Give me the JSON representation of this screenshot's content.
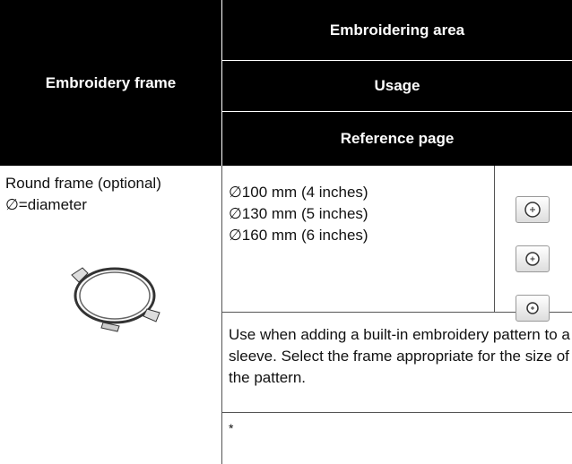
{
  "header": {
    "left": "Embroidery frame",
    "right": [
      "Embroidering area",
      "Usage",
      "Reference page"
    ]
  },
  "row": {
    "frame": "Round frame (optional)",
    "note": "∅=diameter",
    "areas": [
      "∅100 mm (4 inches)",
      "∅130 mm (5 inches)",
      "∅160 mm (6 inches)"
    ],
    "usage": "Use when adding a built-in embroidery pattern to a sleeve. Select the frame appropriate for the size of the pattern.",
    "reference": "*"
  }
}
